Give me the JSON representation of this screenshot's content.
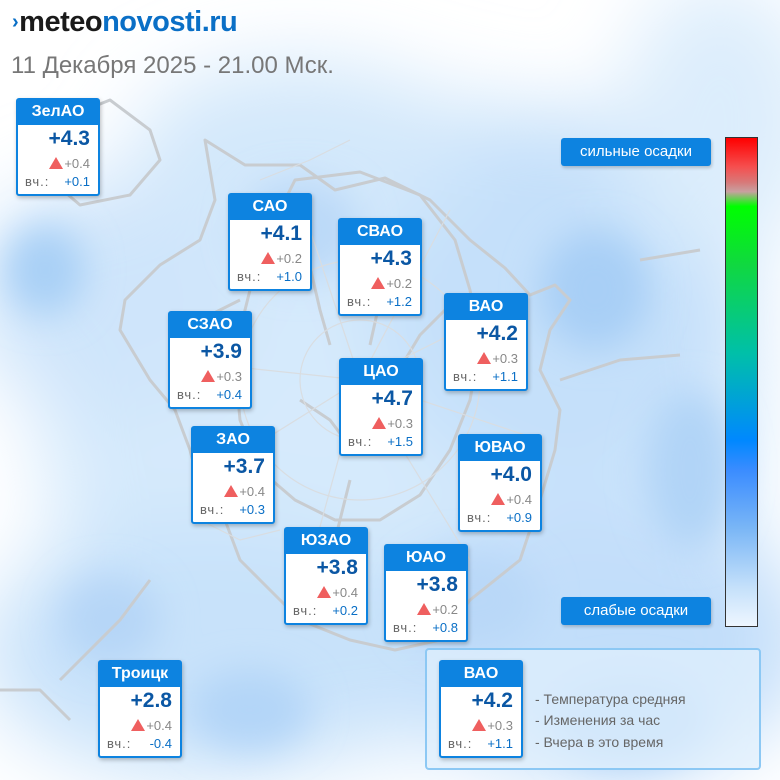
{
  "header": {
    "logo": {
      "mark": "›",
      "meteo": "meteo",
      "novosti": "novosti",
      "ru": ".ru"
    },
    "datetime": "11 Декабря 2025 - 21.00 Мск."
  },
  "yesterday_label": "вч.:",
  "districts": {
    "zelao": {
      "name": "ЗелАО",
      "temp": "+4.3",
      "change": "+0.4",
      "yesterday": "+0.1"
    },
    "sao": {
      "name": "САО",
      "temp": "+4.1",
      "change": "+0.2",
      "yesterday": "+1.0"
    },
    "svao": {
      "name": "СВАО",
      "temp": "+4.3",
      "change": "+0.2",
      "yesterday": "+1.2"
    },
    "vao": {
      "name": "ВАО",
      "temp": "+4.2",
      "change": "+0.3",
      "yesterday": "+1.1"
    },
    "szao": {
      "name": "СЗАО",
      "temp": "+3.9",
      "change": "+0.3",
      "yesterday": "+0.4"
    },
    "cao": {
      "name": "ЦАО",
      "temp": "+4.7",
      "change": "+0.3",
      "yesterday": "+1.5"
    },
    "zao": {
      "name": "ЗАО",
      "temp": "+3.7",
      "change": "+0.4",
      "yesterday": "+0.3"
    },
    "yuvao": {
      "name": "ЮВАО",
      "temp": "+4.0",
      "change": "+0.4",
      "yesterday": "+0.9"
    },
    "yuzao": {
      "name": "ЮЗАО",
      "temp": "+3.8",
      "change": "+0.4",
      "yesterday": "+0.2"
    },
    "yuao": {
      "name": "ЮАО",
      "temp": "+3.8",
      "change": "+0.2",
      "yesterday": "+0.8"
    },
    "troick": {
      "name": "Троицк",
      "temp": "+2.8",
      "change": "+0.4",
      "yesterday": "-0.4"
    }
  },
  "scale": {
    "high_label": "сильные осадки",
    "low_label": "слабые осадки"
  },
  "legend": {
    "example": {
      "name": "ВАО",
      "temp": "+4.2",
      "change": "+0.3",
      "yesterday": "+1.1"
    },
    "items": [
      "- Температура средняя",
      "- Изменения за час",
      "- Вчера в это время"
    ]
  },
  "colors": {
    "accent": "#0d83e0",
    "temp_text": "#0b57a4",
    "rise_triangle": "#ef5f5f",
    "precip_light": "#cfe6fb",
    "precip_medium": "#9ccaf6"
  },
  "icons": {
    "change": "triangle-up-icon",
    "logo_mark": "chevron-right-icon"
  }
}
